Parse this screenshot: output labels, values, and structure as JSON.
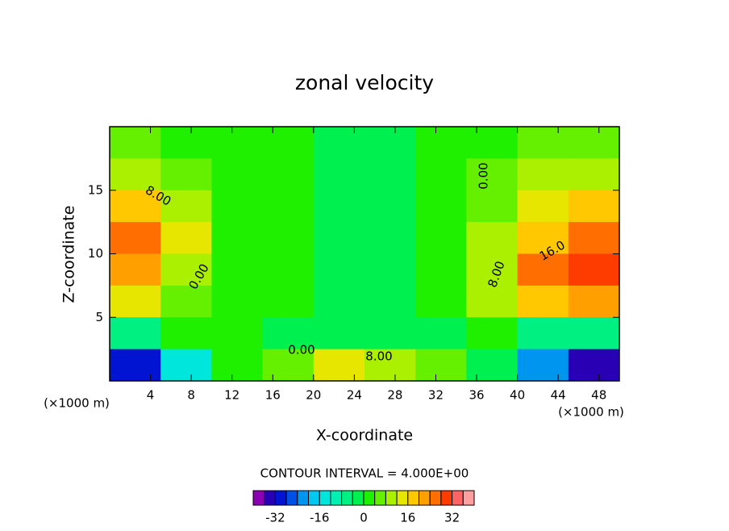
{
  "chart_data": {
    "type": "contour",
    "title": "zonal velocity",
    "x_label": "X-coordinate",
    "y_label": "Z-coordinate",
    "x_unit": "(×1000 m)",
    "note": "CONTOUR INTERVAL = 4.000E+00",
    "xlim": [
      0,
      50
    ],
    "ylim": [
      0,
      20
    ],
    "xticks": [
      4,
      8,
      12,
      16,
      20,
      24,
      28,
      32,
      36,
      40,
      44,
      48
    ],
    "yticks": [
      5,
      10,
      15
    ],
    "x": [
      2.5,
      7.5,
      12.5,
      17.5,
      22.5,
      27.5,
      32.5,
      37.5,
      42.5,
      47.5
    ],
    "y": [
      18.75,
      16.25,
      13.75,
      11.25,
      8.75,
      6.25,
      3.75,
      1.25
    ],
    "values": [
      [
        6,
        3,
        1,
        1,
        -1,
        -1,
        1,
        3,
        5,
        6
      ],
      [
        9,
        5,
        1,
        1,
        -2,
        -2,
        1,
        4,
        8,
        10
      ],
      [
        18,
        9,
        2,
        1,
        -2,
        -2,
        0,
        6,
        13,
        16
      ],
      [
        24,
        12,
        2,
        1,
        -2,
        -2,
        0,
        9,
        19,
        24
      ],
      [
        22,
        11,
        2,
        1,
        -2,
        -1,
        0,
        10,
        24,
        30
      ],
      [
        14,
        7,
        3,
        1,
        -2,
        -1,
        0,
        8,
        18,
        20
      ],
      [
        -6,
        0,
        2,
        -1,
        -3,
        -3,
        -1,
        2,
        -6,
        -8
      ],
      [
        -30,
        -14,
        2,
        6,
        12,
        10,
        6,
        -4,
        -24,
        -34
      ]
    ],
    "contour_labels": [
      {
        "value": 8,
        "label": "8.00"
      },
      {
        "value": 0,
        "label": "0.00"
      },
      {
        "value": 0,
        "label": "0.00"
      },
      {
        "value": 8,
        "label": "8.00"
      },
      {
        "value": 0,
        "label": "0.00"
      },
      {
        "value": 8,
        "label": "8.00"
      },
      {
        "value": 16,
        "label": "16.0"
      }
    ],
    "colorbar": {
      "lim": [
        -40,
        40
      ],
      "ticks": [
        -32,
        -16,
        0,
        16,
        32
      ],
      "colors": [
        "#8c00b4",
        "#2a00b4",
        "#0014d2",
        "#0050e6",
        "#0096f0",
        "#00c8f0",
        "#00e6dc",
        "#00f0b4",
        "#00f082",
        "#00f050",
        "#1ef000",
        "#64f000",
        "#aaf000",
        "#e6e600",
        "#ffc800",
        "#ffa000",
        "#ff6e00",
        "#ff3c00",
        "#ff6464",
        "#ffa0a0"
      ]
    }
  }
}
